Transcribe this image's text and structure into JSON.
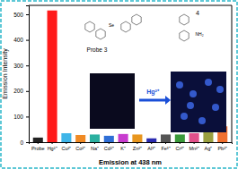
{
  "chart_data": {
    "type": "bar",
    "y_label": "Emission Intensity",
    "x_label": "Emission at 438 nm",
    "categories": [
      "Probe",
      "Hg²⁺",
      "Cu²⁺",
      "Co²⁺",
      "Na⁺",
      "Cd²⁺",
      "K⁺",
      "Zn²⁺",
      "Al³⁺",
      "Fe³⁺",
      "Cr³⁺",
      "Mn²⁺",
      "Ag⁺",
      "Pb²⁺"
    ],
    "values": [
      18,
      515,
      35,
      28,
      30,
      25,
      32,
      30,
      15,
      30,
      30,
      35,
      55,
      62
    ],
    "colors": [
      "#222222",
      "#ff1a1a",
      "#3fb5e8",
      "#f08a24",
      "#2bb0a0",
      "#2f6fd6",
      "#c83ccf",
      "#e8961e",
      "#2b2bb0",
      "#555555",
      "#3a9a3a",
      "#e0508a",
      "#9aa040",
      "#f07030"
    ],
    "ylim": [
      0,
      535
    ],
    "yticks": [
      0,
      100,
      200,
      300,
      400,
      500
    ],
    "annotations": [
      "Probe 3",
      "4",
      "Hg²⁺",
      "Se",
      "NH₂"
    ]
  }
}
